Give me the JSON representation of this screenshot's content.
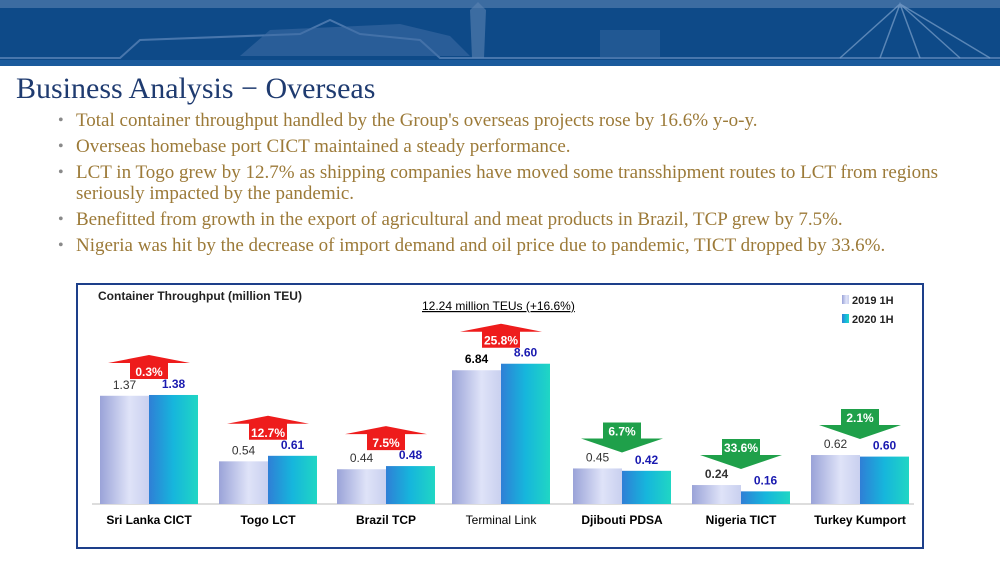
{
  "header": {
    "title": "Business Analysis  −  Overseas"
  },
  "bullets": [
    "Total container throughput handled by the Group's overseas projects rose by 16.6% y-o-y.",
    "Overseas homebase port CICT maintained a steady performance.",
    "LCT in Togo grew by 12.7% as shipping companies have moved some transshipment routes to LCT from regions seriously impacted by the pandemic.",
    "Benefitted from growth in the export of agricultural and meat products in Brazil, TCP grew by 7.5%.",
    "Nigeria was hit by the decrease of import demand and oil price due to pandemic, TICT dropped by 33.6%."
  ],
  "chart_data": {
    "type": "bar",
    "title": "Container Throughput (million TEU)",
    "subtitle": "12.24 million TEUs  (+16.6%)",
    "categories": [
      "Sri Lanka CICT",
      "Togo LCT",
      "Brazil TCP",
      "Terminal Link",
      "Djibouti PDSA",
      "Nigeria TICT",
      "Turkey Kumport"
    ],
    "series": [
      {
        "name": "2019 1H",
        "values": [
          1.37,
          0.54,
          0.44,
          6.84,
          0.45,
          0.24,
          0.62
        ],
        "labels": [
          "1.37",
          "0.54",
          "0.44",
          "6.84",
          "0.45",
          "0.24",
          "0.62"
        ]
      },
      {
        "name": "2020 1H",
        "values": [
          1.38,
          0.61,
          0.48,
          8.6,
          0.42,
          0.16,
          0.6
        ],
        "labels": [
          "1.38",
          "0.61",
          "0.48",
          "8.60",
          "0.42",
          "0.16",
          "0.60"
        ]
      }
    ],
    "changes": [
      {
        "label": "0.3%",
        "direction": "up"
      },
      {
        "label": "12.7%",
        "direction": "up"
      },
      {
        "label": "7.5%",
        "direction": "up"
      },
      {
        "label": "25.8%",
        "direction": "up"
      },
      {
        "label": "6.7%",
        "direction": "down"
      },
      {
        "label": "33.6%",
        "direction": "down"
      },
      {
        "label": "2.1%",
        "direction": "down"
      }
    ],
    "scale_note": "Terminal Link bars drawn on compressed (broken) scale",
    "legend_position": "top-right",
    "grid": false,
    "colors": {
      "series_2019": "#c4cbee",
      "series_2020": "#17b3d6",
      "label_2019": "#333333",
      "label_2020": "#1a1ab0",
      "arrow_up": "#ee1c1c",
      "arrow_down": "#1fa04a",
      "frame": "#1d3f8a"
    }
  }
}
